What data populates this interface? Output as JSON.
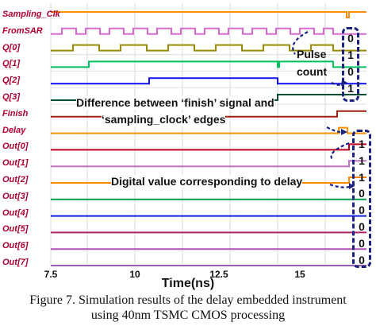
{
  "chart_data": {
    "type": "digital-waveform",
    "x_ticks": [
      "7.5",
      "10",
      "12.5",
      "15"
    ],
    "xlabel": "Time(ns)",
    "signals": [
      {
        "name": "Sampling_Clk",
        "color": "#ff8a00"
      },
      {
        "name": "FromSAR",
        "color": "#d86ad0"
      },
      {
        "name": "Q[0]",
        "color": "#9a8a00"
      },
      {
        "name": "Q[1]",
        "color": "#00c060"
      },
      {
        "name": "Q[2]",
        "color": "#1010ff"
      },
      {
        "name": "Q[3]",
        "color": "#005030"
      },
      {
        "name": "Finish",
        "color": "#a02010"
      },
      {
        "name": "Delay",
        "color": "#ff9000"
      },
      {
        "name": "Out[0]",
        "color": "#c00020"
      },
      {
        "name": "Out[1]",
        "color": "#c070c0"
      },
      {
        "name": "Out[2]",
        "color": "#ff8800"
      },
      {
        "name": "Out[3]",
        "color": "#00a050"
      },
      {
        "name": "Out[4]",
        "color": "#1020e0"
      },
      {
        "name": "Out[5]",
        "color": "#b02060"
      },
      {
        "name": "Out[6]",
        "color": "#b050b0"
      },
      {
        "name": "Out[7]",
        "color": "#a060b0"
      }
    ],
    "pulse_count_bits": [
      "0",
      "1",
      "0",
      "1"
    ],
    "digital_value_bits": [
      "1",
      "1",
      "1",
      "0",
      "0",
      "0",
      "0",
      "0"
    ]
  },
  "annotations": {
    "pulse": "Pulse",
    "count": "count",
    "difference_line1": "Difference between ‘finish’ signal and",
    "difference_line2": "‘sampling_clock’ edges",
    "digital_value": "Digital value corresponding to delay"
  },
  "caption": {
    "line1": "Figure 7. Simulation results of the delay embedded instrument",
    "line2": "using 40nm TSMC CMOS processing"
  }
}
